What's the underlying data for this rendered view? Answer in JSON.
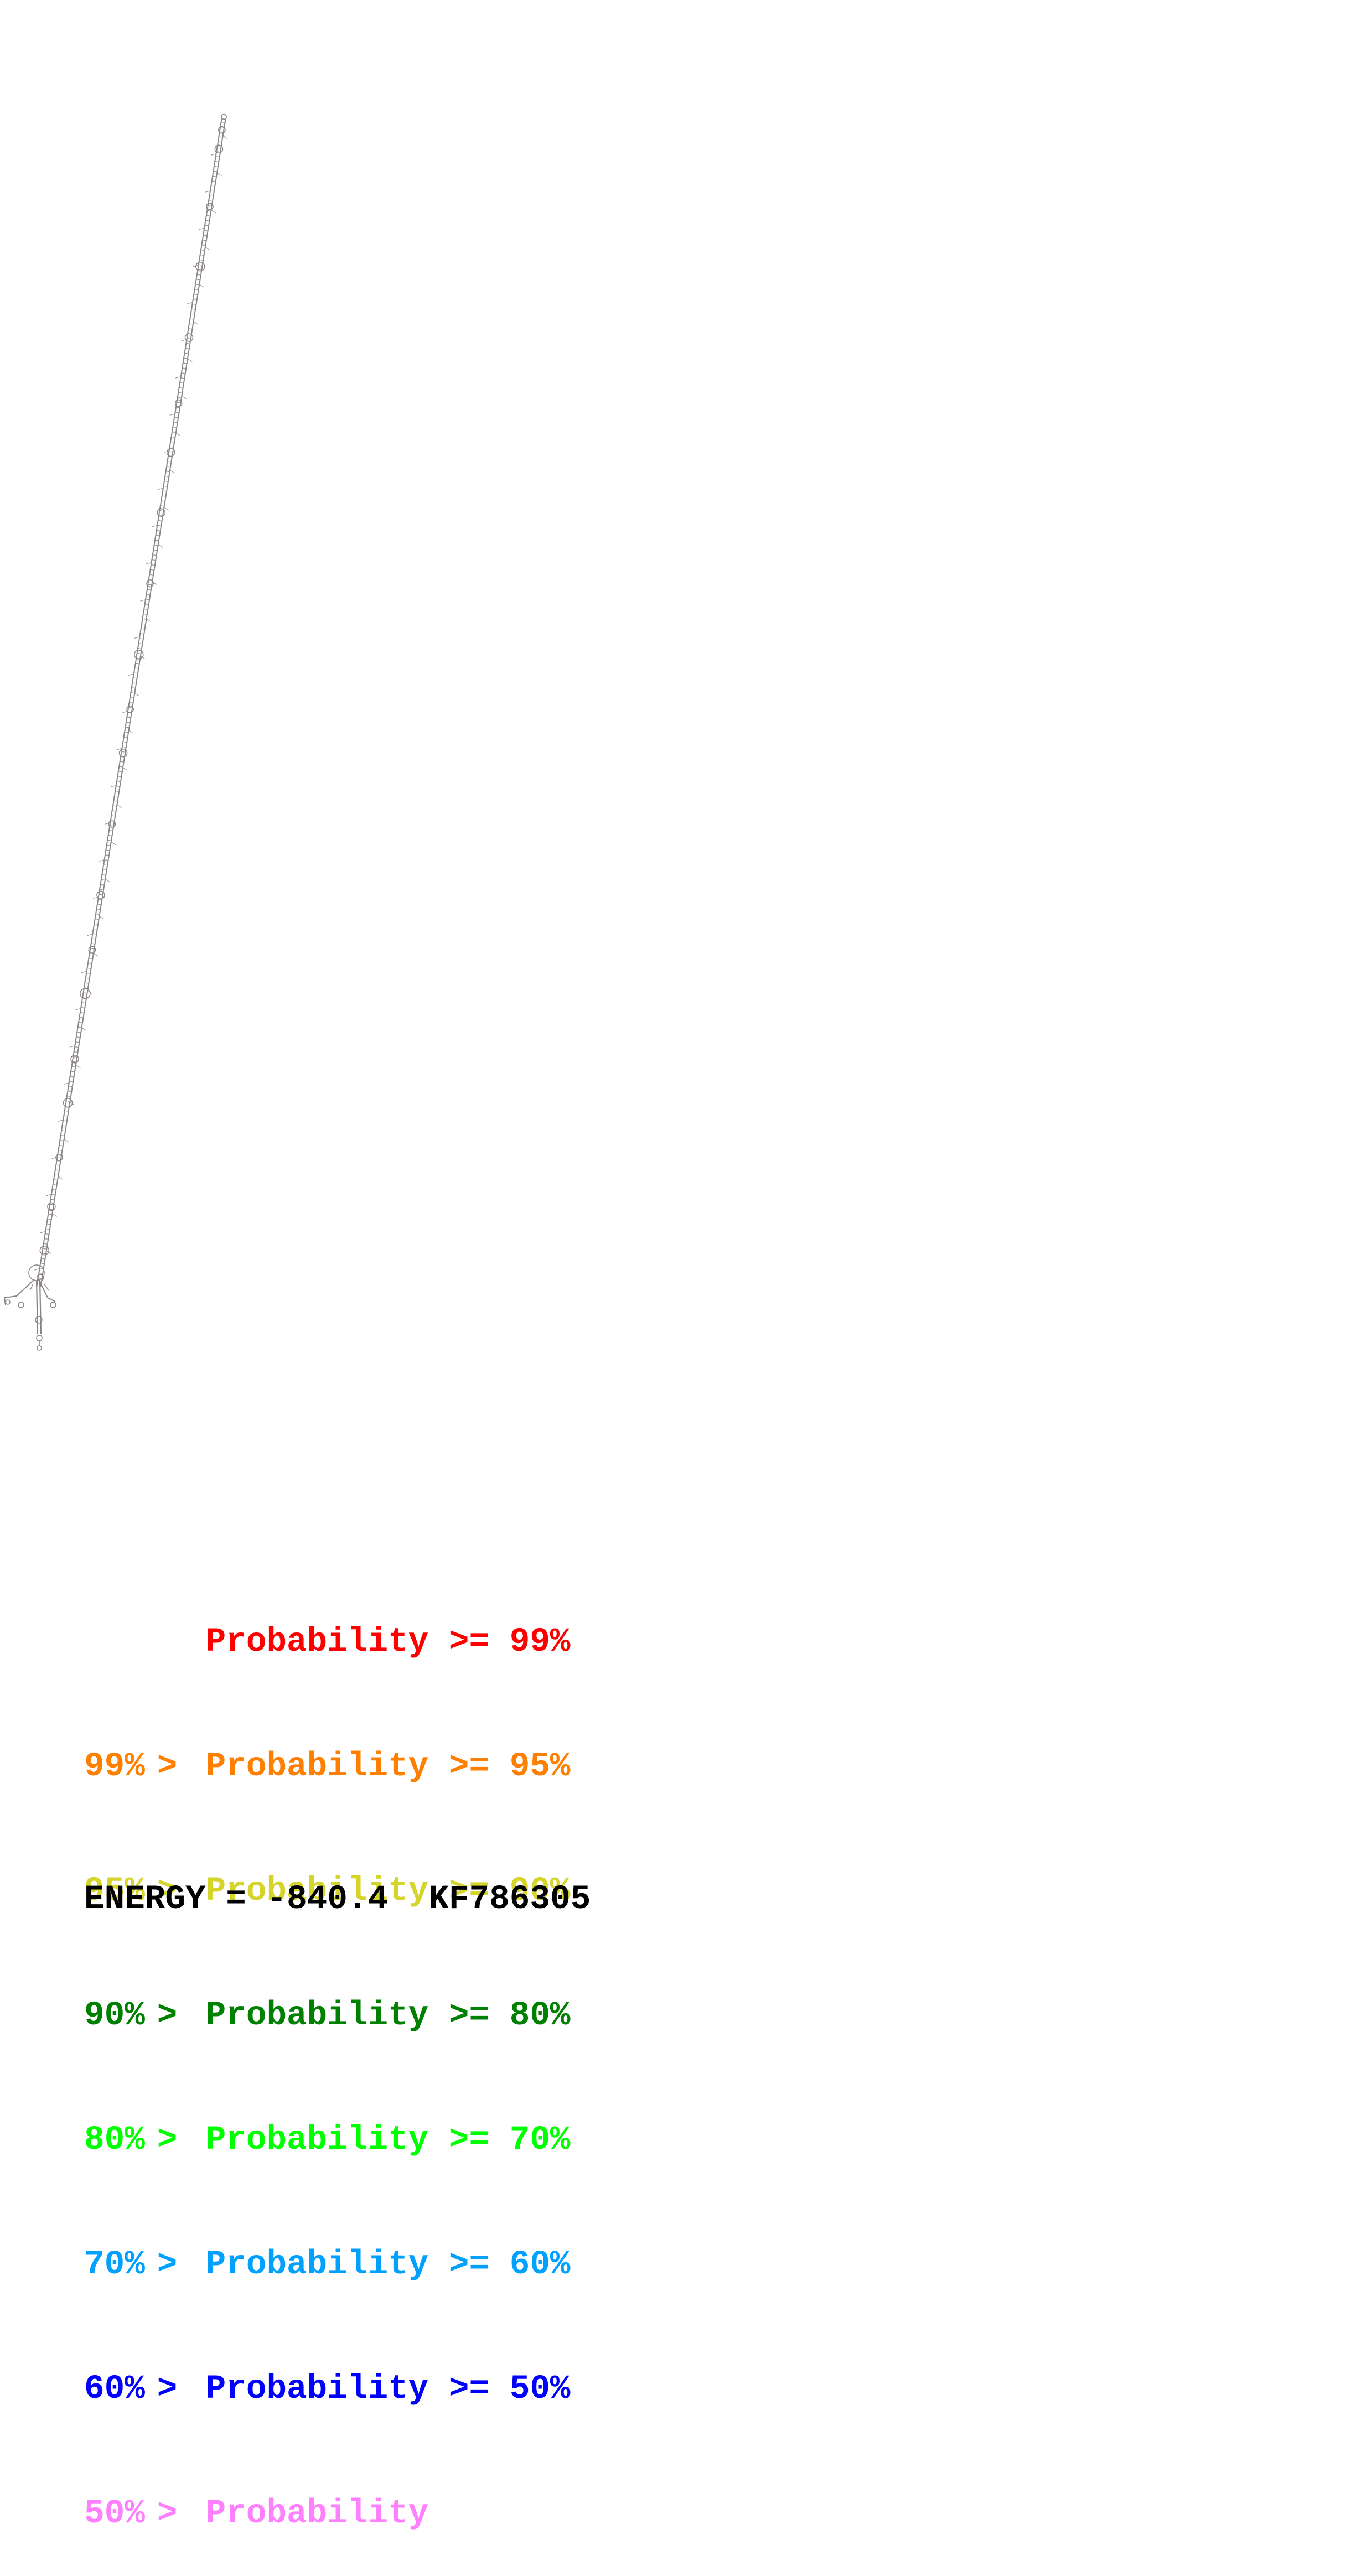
{
  "structure": {
    "stroke_color": "#8a8486",
    "base_color": "#9a9294"
  },
  "legend": {
    "rows": [
      {
        "lower": "",
        "sep": "",
        "label": "Probability",
        "upper": ">= 99%",
        "color": "#ff0000"
      },
      {
        "lower": "99%",
        "sep": ">",
        "label": "Probability",
        "upper": ">= 95%",
        "color": "#ff8000"
      },
      {
        "lower": "95%",
        "sep": ">",
        "label": "Probability",
        "upper": ">= 90%",
        "color": "#d4d42a"
      },
      {
        "lower": "90%",
        "sep": ">",
        "label": "Probability",
        "upper": ">= 80%",
        "color": "#008000"
      },
      {
        "lower": "80%",
        "sep": ">",
        "label": "Probability",
        "upper": ">= 70%",
        "color": "#00ff00"
      },
      {
        "lower": "70%",
        "sep": ">",
        "label": "Probability",
        "upper": ">= 60%",
        "color": "#00a0ff"
      },
      {
        "lower": "60%",
        "sep": ">",
        "label": "Probability",
        "upper": ">= 50%",
        "color": "#0000ff"
      },
      {
        "lower": "50%",
        "sep": ">",
        "label": "Probability",
        "upper": "",
        "color": "#ff80ff"
      }
    ]
  },
  "footer": {
    "energy_label": "ENERGY =",
    "energy_value": "-840.4",
    "accession": "KF786305"
  }
}
